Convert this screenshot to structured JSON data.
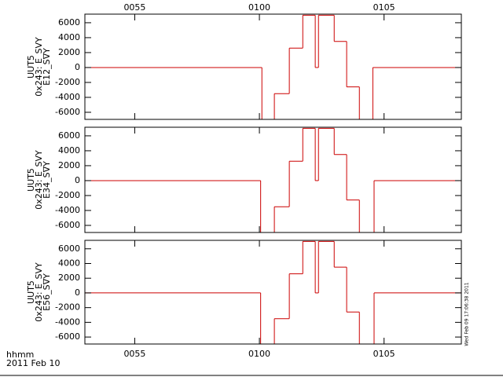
{
  "chart_data": [
    {
      "type": "line",
      "step": "post",
      "color": "#cc0000",
      "ylabel": [
        "UUT5",
        "0x243: E_SVY",
        "E12_SVY"
      ],
      "x": [
        53,
        60.1,
        60.6,
        61.2,
        61.74,
        62.24,
        62.37,
        63.0,
        63.5,
        64.01,
        64.55
      ],
      "values": [
        0,
        -7000,
        -3500,
        2600,
        7000,
        0,
        7000,
        3500,
        -2600,
        -7000,
        0
      ],
      "xlim": [
        53,
        68.1
      ],
      "ylim": [
        -6950,
        7150
      ],
      "xticks": [
        {
          "value": 55,
          "label": "0055"
        },
        {
          "value": 60,
          "label": "0100"
        },
        {
          "value": 65,
          "label": "0105"
        }
      ],
      "xtick_labels": "top",
      "yticks": [
        -6000,
        -4000,
        -2000,
        0,
        2000,
        4000,
        6000
      ]
    },
    {
      "type": "line",
      "step": "post",
      "color": "#cc0000",
      "ylabel": [
        "UUT5",
        "0x243: E_SVY",
        "E34_SVY"
      ],
      "x": [
        53,
        60.05,
        60.6,
        61.2,
        61.74,
        62.24,
        62.37,
        63.0,
        63.5,
        64.01,
        64.6
      ],
      "values": [
        0,
        -7000,
        -3500,
        2600,
        7000,
        0,
        7000,
        3500,
        -2600,
        -7000,
        0
      ],
      "xlim": [
        53,
        68.1
      ],
      "ylim": [
        -6950,
        7150
      ],
      "xticks": [
        55,
        60,
        65
      ],
      "yticks": [
        -6000,
        -4000,
        -2000,
        0,
        2000,
        4000,
        6000
      ]
    },
    {
      "type": "line",
      "step": "post",
      "color": "#cc0000",
      "ylabel": [
        "UUT5",
        "0x243: E_SVY",
        "E56_SVY"
      ],
      "x": [
        53,
        60.05,
        60.6,
        61.2,
        61.74,
        62.24,
        62.37,
        63.0,
        63.5,
        64.01,
        64.6
      ],
      "values": [
        0,
        -7000,
        -3500,
        2600,
        7000,
        0,
        7000,
        3500,
        -2600,
        -7000,
        0
      ],
      "xlim": [
        53,
        68.1
      ],
      "ylim": [
        -6950,
        7150
      ],
      "xticks": [
        {
          "value": 55,
          "label": "0055"
        },
        {
          "value": 60,
          "label": "0100"
        },
        {
          "value": 65,
          "label": "0105"
        }
      ],
      "xtick_labels": "bottom",
      "yticks": [
        -6000,
        -4000,
        -2000,
        0,
        2000,
        4000,
        6000
      ]
    }
  ],
  "footer": {
    "x_unit": "hhmm",
    "date": "2011 Feb 10",
    "timestamp": "Wed Feb 09 17:06:38 2011"
  }
}
